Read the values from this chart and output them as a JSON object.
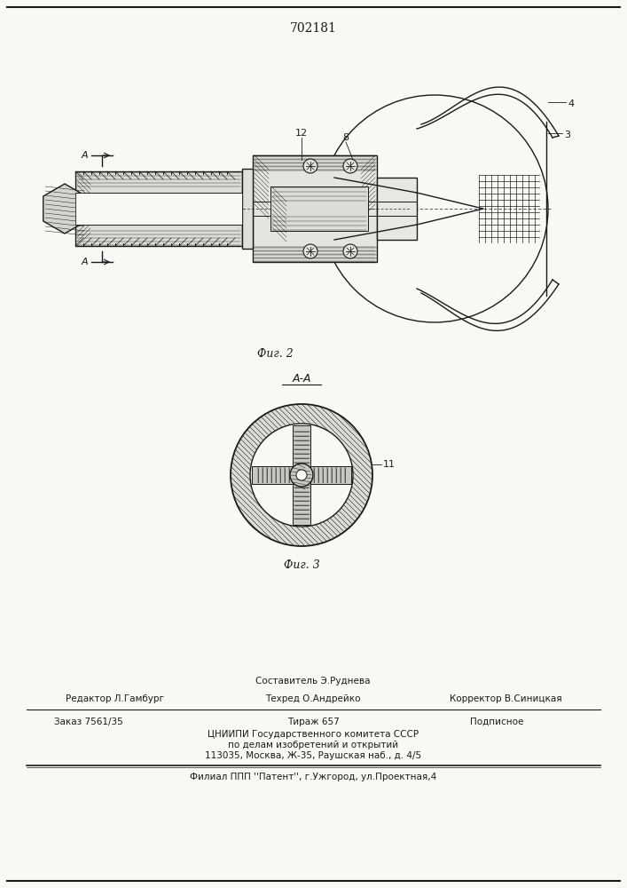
{
  "patent_number": "702181",
  "fig2_label": "Фиг. 2",
  "fig3_label": "Фиг. 3",
  "section_label": "А-А",
  "label_11": "11",
  "label_12": "12",
  "label_8": "8",
  "label_4": "4",
  "label_3": "3",
  "footer_line1_center": "Составитель Э.Руднева",
  "footer_line1_left": "Редактор Л.Гамбург",
  "footer_line2_center": "Техред О.Андрейко",
  "footer_line2_right": "Корректор В.Синицкая",
  "footer_line3_left": "Заказ 7561/35",
  "footer_line3_center": "Тираж 657",
  "footer_line3_right": "Подписное",
  "footer_line4": "ЦНИИПИ Государственного комитета СССР",
  "footer_line5": "по делам изобретений и открытий",
  "footer_line6": "113035, Москва, Ж-35, Раушская наб., д. 4/5",
  "footer_line7": "Филиал ППП ''Патент'', г.Ужгород, ул.Проектная,4",
  "bg_color": "#f8f8f5",
  "line_color": "#1a1a1a"
}
